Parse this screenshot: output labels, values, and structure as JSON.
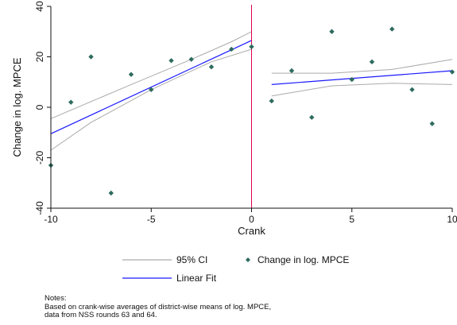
{
  "chart_data": {
    "type": "scatter",
    "xlabel": "Crank",
    "ylabel": "Change in log. MPCE",
    "xlim": [
      -10,
      10
    ],
    "ylim": [
      -40,
      40
    ],
    "x_ticks": [
      -10,
      -5,
      0,
      5,
      10
    ],
    "y_ticks": [
      -40,
      -20,
      0,
      20,
      40
    ],
    "grid": false,
    "cutoff_line": {
      "x": 0,
      "color": "#e0004c"
    },
    "series": [
      {
        "name": "Change in log. MPCE",
        "kind": "scatter",
        "color": "#2e6b5e",
        "points": [
          {
            "x": -10,
            "y": -23
          },
          {
            "x": -9,
            "y": 2
          },
          {
            "x": -8,
            "y": 20
          },
          {
            "x": -7,
            "y": -34
          },
          {
            "x": -6,
            "y": 13
          },
          {
            "x": -5,
            "y": 7
          },
          {
            "x": -4,
            "y": 18.5
          },
          {
            "x": -3,
            "y": 19
          },
          {
            "x": -2,
            "y": 16
          },
          {
            "x": -1,
            "y": 23
          },
          {
            "x": 0,
            "y": 24
          },
          {
            "x": 1,
            "y": 2.5
          },
          {
            "x": 2,
            "y": 14.5
          },
          {
            "x": 3,
            "y": -4
          },
          {
            "x": 4,
            "y": 30
          },
          {
            "x": 5,
            "y": 11
          },
          {
            "x": 6,
            "y": 18
          },
          {
            "x": 7,
            "y": 31
          },
          {
            "x": 8,
            "y": 7
          },
          {
            "x": 9,
            "y": -6.5
          },
          {
            "x": 10,
            "y": 14
          }
        ]
      },
      {
        "name": "Linear Fit",
        "kind": "line",
        "color": "#1a1aff",
        "segments": [
          [
            {
              "x": -10,
              "y": -10.5
            },
            {
              "x": 0,
              "y": 26.5
            }
          ],
          [
            {
              "x": 1,
              "y": 9
            },
            {
              "x": 10,
              "y": 14.5
            }
          ]
        ]
      },
      {
        "name": "95% CI",
        "kind": "band",
        "color": "#aaaaaa",
        "upper": [
          [
            {
              "x": -10,
              "y": -4.5
            },
            {
              "x": -6,
              "y": 9
            },
            {
              "x": -3,
              "y": 19
            },
            {
              "x": -1,
              "y": 26
            },
            {
              "x": 0,
              "y": 30
            }
          ],
          [
            {
              "x": 1,
              "y": 13.5
            },
            {
              "x": 4,
              "y": 13.5
            },
            {
              "x": 7,
              "y": 15
            },
            {
              "x": 10,
              "y": 19
            }
          ]
        ],
        "lower": [
          [
            {
              "x": -10,
              "y": -17
            },
            {
              "x": -8,
              "y": -6
            },
            {
              "x": -5,
              "y": 7
            },
            {
              "x": -2,
              "y": 18
            },
            {
              "x": 0,
              "y": 23
            }
          ],
          [
            {
              "x": 1,
              "y": 4.5
            },
            {
              "x": 4,
              "y": 8.5
            },
            {
              "x": 7,
              "y": 9.5
            },
            {
              "x": 10,
              "y": 9
            }
          ]
        ]
      }
    ],
    "legend": {
      "placement": "bottom",
      "items": [
        {
          "label": "95% CI",
          "symbol": "line",
          "color": "#aaaaaa"
        },
        {
          "label": "Change in log. MPCE",
          "symbol": "diamond",
          "color": "#2e6b5e"
        },
        {
          "label": "Linear Fit",
          "symbol": "line",
          "color": "#1a1aff"
        }
      ]
    },
    "notes": [
      "Notes:",
      "Based on crank-wise averages of district-wise means of log. MPCE,",
      "data from NSS rounds 63 and 64."
    ]
  }
}
